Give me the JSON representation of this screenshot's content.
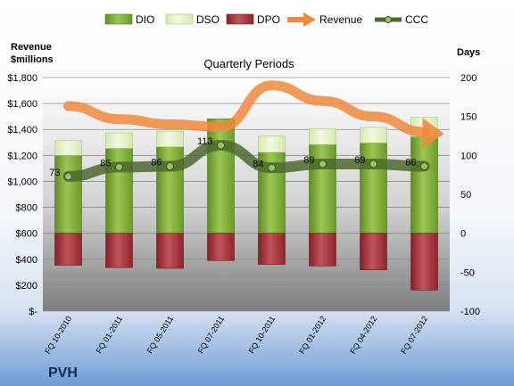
{
  "chart_data": {
    "type": "bar",
    "subtitle": "Quarterly Periods",
    "company": "PVH",
    "left_axis_label_line1": "Revenue",
    "left_axis_label_line2": "$millions",
    "right_axis_label": "Days",
    "left_axis": {
      "range": [
        0,
        1800
      ],
      "ticks": [
        0,
        200,
        400,
        600,
        800,
        1000,
        1200,
        1400,
        1600,
        1800
      ],
      "tick_labels": [
        "$-",
        "$200",
        "$400",
        "$600",
        "$800",
        "$1,000",
        "$1,200",
        "$1,400",
        "$1,600",
        "$1,800"
      ]
    },
    "right_axis": {
      "range": [
        -100,
        200
      ],
      "ticks": [
        -100,
        -50,
        0,
        50,
        100,
        150,
        200
      ],
      "tick_labels": [
        "-100",
        "-50",
        "0",
        "50",
        "100",
        "150",
        "200"
      ]
    },
    "categories": [
      "FQ 10-2010",
      "FQ 01-2011",
      "FQ 05-2011",
      "FQ 07-2011",
      "FQ 10-2011",
      "FQ 01-2012",
      "FQ 04-2012",
      "FQ 07-2012"
    ],
    "series": [
      {
        "name": "DIO",
        "axis": "right",
        "kind": "stacked-bar",
        "color": "#7aa63a",
        "values": [
          100,
          109,
          111,
          147,
          104,
          114,
          116,
          124
        ]
      },
      {
        "name": "DSO",
        "axis": "right",
        "kind": "stacked-bar",
        "color": "#e3f1c4",
        "values": [
          19,
          20,
          20,
          0,
          21,
          20,
          20,
          25
        ]
      },
      {
        "name": "DPO",
        "axis": "right",
        "kind": "bar-negative",
        "color": "#9e2f35",
        "values": [
          -41,
          -44,
          -45,
          -35,
          -40,
          -42,
          -47,
          -73
        ]
      },
      {
        "name": "Revenue",
        "axis": "left",
        "kind": "line",
        "color": "#f0883c",
        "values": [
          1580,
          1480,
          1440,
          1420,
          1740,
          1620,
          1500,
          1380
        ]
      },
      {
        "name": "CCC",
        "axis": "right",
        "kind": "line",
        "color": "#4d6a2e",
        "values": [
          73,
          85,
          86,
          113,
          84,
          89,
          89,
          86
        ],
        "labels": [
          "73",
          "85",
          "86",
          "113",
          "84",
          "89",
          "89",
          "86"
        ]
      }
    ],
    "legend": {
      "placement": "top",
      "entries": [
        "DIO",
        "DSO",
        "DPO",
        "Revenue",
        "CCC"
      ]
    }
  }
}
